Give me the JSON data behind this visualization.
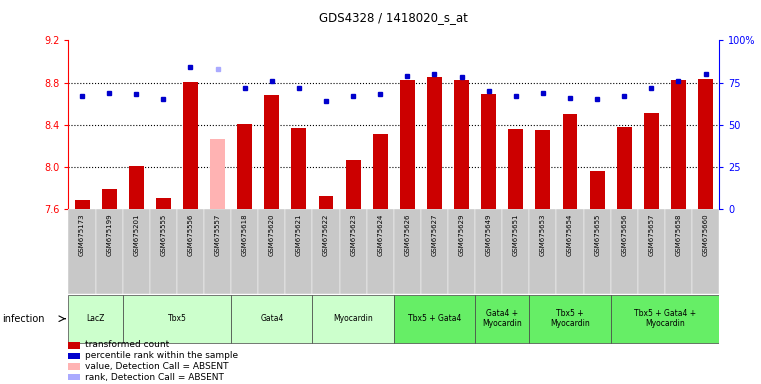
{
  "title": "GDS4328 / 1418020_s_at",
  "samples": [
    "GSM675173",
    "GSM675199",
    "GSM675201",
    "GSM675555",
    "GSM675556",
    "GSM675557",
    "GSM675618",
    "GSM675620",
    "GSM675621",
    "GSM675622",
    "GSM675623",
    "GSM675624",
    "GSM675626",
    "GSM675627",
    "GSM675629",
    "GSM675649",
    "GSM675651",
    "GSM675653",
    "GSM675654",
    "GSM675655",
    "GSM675656",
    "GSM675657",
    "GSM675658",
    "GSM675660"
  ],
  "bar_values": [
    7.69,
    7.79,
    8.01,
    7.71,
    8.81,
    8.27,
    8.41,
    8.68,
    8.37,
    7.73,
    8.07,
    8.31,
    8.82,
    8.85,
    8.82,
    8.69,
    8.36,
    8.35,
    8.5,
    7.96,
    8.38,
    8.51,
    8.82,
    8.83
  ],
  "dot_values": [
    67,
    69,
    68,
    65,
    84,
    83,
    72,
    76,
    72,
    64,
    67,
    68,
    79,
    80,
    78,
    70,
    67,
    69,
    66,
    65,
    67,
    72,
    76,
    80
  ],
  "absent_indices": [
    5
  ],
  "bar_color": "#cc0000",
  "absent_bar_color": "#ffb3b3",
  "dot_color": "#0000cc",
  "absent_dot_color": "#aaaaff",
  "ylim_left": [
    7.6,
    9.2
  ],
  "ylim_right": [
    0,
    100
  ],
  "yticks_left": [
    7.6,
    8.0,
    8.4,
    8.8,
    9.2
  ],
  "ytick_labels_right": [
    "0",
    "25",
    "50",
    "75",
    "100%"
  ],
  "dotted_lines": [
    8.0,
    8.4,
    8.8
  ],
  "group_definitions": [
    {
      "label": "LacZ",
      "start": 0,
      "end": 1,
      "color": "#ccffcc"
    },
    {
      "label": "Tbx5",
      "start": 2,
      "end": 5,
      "color": "#ccffcc"
    },
    {
      "label": "Gata4",
      "start": 6,
      "end": 8,
      "color": "#ccffcc"
    },
    {
      "label": "Myocardin",
      "start": 9,
      "end": 11,
      "color": "#ccffcc"
    },
    {
      "label": "Tbx5 + Gata4",
      "start": 12,
      "end": 14,
      "color": "#66ee66"
    },
    {
      "label": "Gata4 +\nMyocardin",
      "start": 15,
      "end": 16,
      "color": "#66ee66"
    },
    {
      "label": "Tbx5 +\nMyocardin",
      "start": 17,
      "end": 19,
      "color": "#66ee66"
    },
    {
      "label": "Tbx5 + Gata4 +\nMyocardin",
      "start": 20,
      "end": 23,
      "color": "#66ee66"
    }
  ],
  "legend_items": [
    {
      "color": "#cc0000",
      "label": "transformed count",
      "marker": "rect"
    },
    {
      "color": "#0000cc",
      "label": "percentile rank within the sample",
      "marker": "rect"
    },
    {
      "color": "#ffb3b3",
      "label": "value, Detection Call = ABSENT",
      "marker": "rect"
    },
    {
      "color": "#aaaaff",
      "label": "rank, Detection Call = ABSENT",
      "marker": "rect"
    }
  ]
}
